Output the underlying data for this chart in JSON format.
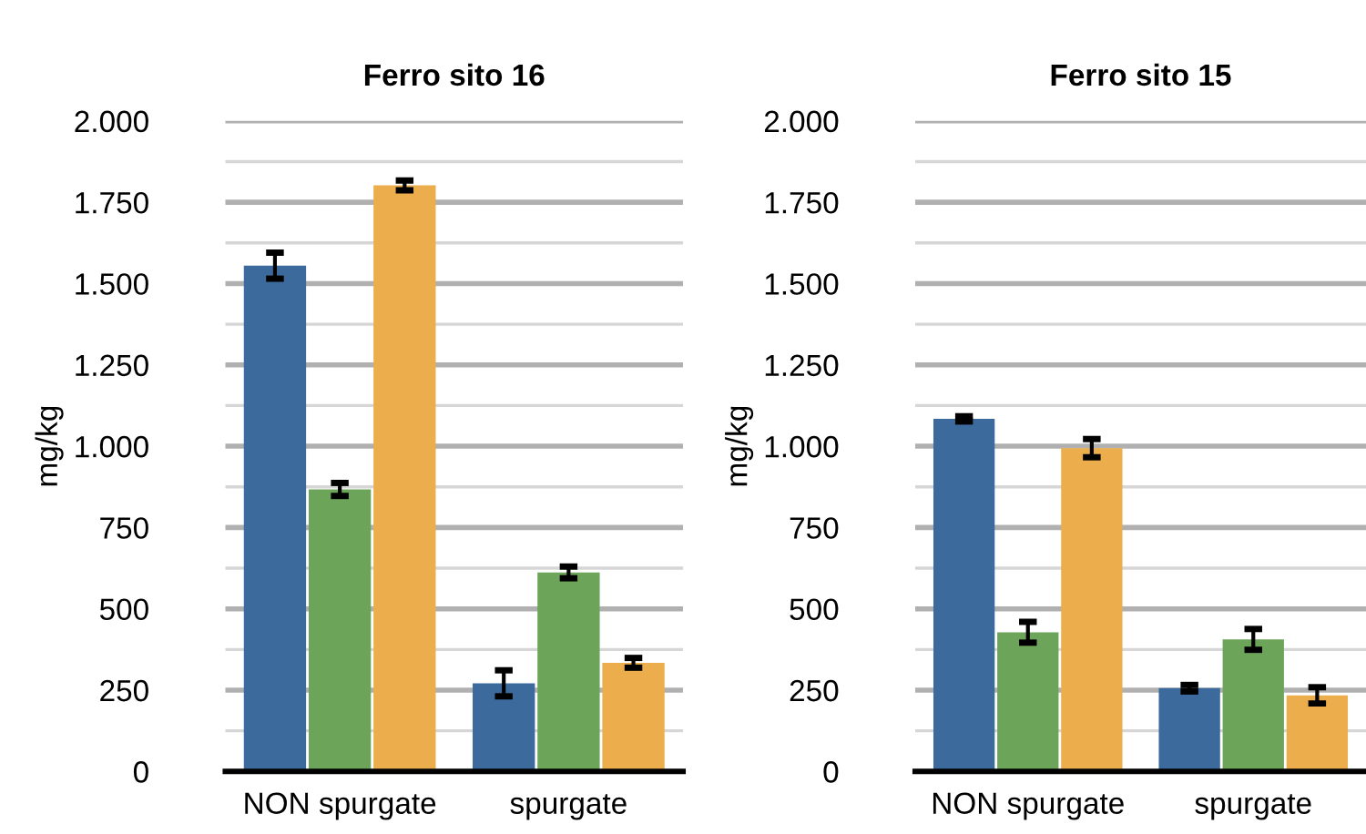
{
  "chart_data": [
    {
      "type": "bar",
      "title": "Ferro sito 16",
      "ylabel": "mg/kg",
      "categories": [
        "NON spurgate",
        "spurgate"
      ],
      "series": [
        {
          "color": "#3d6a9c",
          "values": [
            1555,
            271
          ],
          "errors": [
            40,
            40
          ]
        },
        {
          "color": "#6ca55a",
          "values": [
            867,
            612
          ],
          "errors": [
            20,
            18
          ]
        },
        {
          "color": "#ecae4c",
          "values": [
            1802,
            334
          ],
          "errors": [
            15,
            15
          ]
        }
      ],
      "ylim": [
        0,
        2000
      ],
      "yticks": [
        0,
        {
          "value": 125,
          "label": null
        },
        250,
        {
          "value": 375,
          "label": null
        },
        500,
        {
          "value": 625,
          "label": null
        },
        750,
        {
          "value": 875,
          "label": null
        },
        {
          "value": 1000,
          "label": "1.000"
        },
        {
          "value": 1125,
          "label": null
        },
        {
          "value": 1250,
          "label": "1.250"
        },
        {
          "value": 1375,
          "label": null
        },
        {
          "value": 1500,
          "label": "1.500"
        },
        {
          "value": 1625,
          "label": null
        },
        {
          "value": 1750,
          "label": "1.750"
        },
        {
          "value": 1875,
          "label": null
        },
        {
          "value": 2000,
          "label": "2.000"
        }
      ],
      "grid": "y",
      "legend": false
    },
    {
      "type": "bar",
      "title": "Ferro sito 15",
      "ylabel": "mg/kg",
      "categories": [
        "NON spurgate",
        "spurgate"
      ],
      "series": [
        {
          "color": "#3d6a9c",
          "values": [
            1084,
            256
          ],
          "errors": [
            8,
            10
          ]
        },
        {
          "color": "#6ca55a",
          "values": [
            428,
            406
          ],
          "errors": [
            32,
            32
          ]
        },
        {
          "color": "#ecae4c",
          "values": [
            994,
            234
          ],
          "errors": [
            28,
            25
          ]
        }
      ],
      "ylim": [
        0,
        2000
      ],
      "yticks": [
        0,
        {
          "value": 125,
          "label": null
        },
        250,
        {
          "value": 375,
          "label": null
        },
        500,
        {
          "value": 625,
          "label": null
        },
        750,
        {
          "value": 875,
          "label": null
        },
        {
          "value": 1000,
          "label": "1.000"
        },
        {
          "value": 1125,
          "label": null
        },
        {
          "value": 1250,
          "label": "1.250"
        },
        {
          "value": 1375,
          "label": null
        },
        {
          "value": 1500,
          "label": "1.500"
        },
        {
          "value": 1625,
          "label": null
        },
        {
          "value": 1750,
          "label": "1.750"
        },
        {
          "value": 1875,
          "label": null
        },
        {
          "value": 2000,
          "label": "2.000"
        }
      ],
      "grid": "y",
      "legend": false
    }
  ]
}
